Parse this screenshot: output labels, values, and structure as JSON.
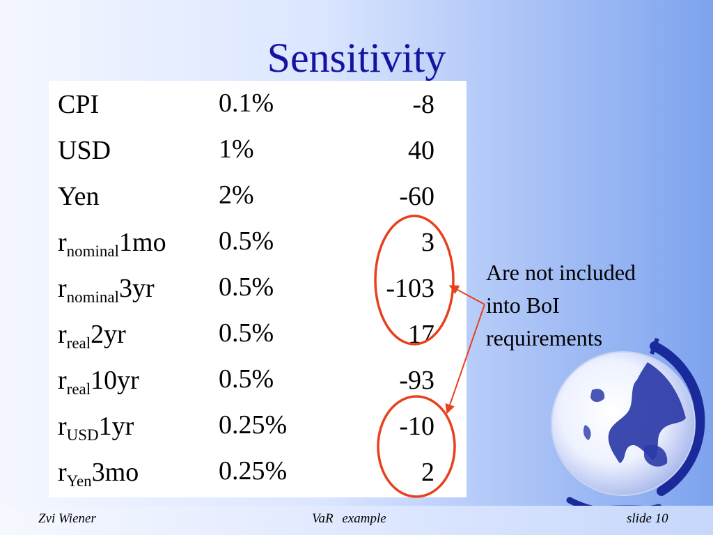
{
  "slide": {
    "title": "Sensitivity",
    "rows": [
      {
        "name": "CPI",
        "sub": "",
        "suffix": "",
        "change": "0.1%",
        "value": "-8"
      },
      {
        "name": "USD",
        "sub": "",
        "suffix": "",
        "change": "1%",
        "value": "40"
      },
      {
        "name": "Yen",
        "sub": "",
        "suffix": "",
        "change": "2%",
        "value": "-60"
      },
      {
        "name": "r",
        "sub": "nominal",
        "suffix": "1mo",
        "change": "0.5%",
        "value": "3"
      },
      {
        "name": "r",
        "sub": "nominal",
        "suffix": "3yr",
        "change": "0.5%",
        "value": "-103"
      },
      {
        "name": "r",
        "sub": "real",
        "suffix": "2yr",
        "change": "0.5%",
        "value": "17"
      },
      {
        "name": "r",
        "sub": "real",
        "suffix": "10yr",
        "change": "0.5%",
        "value": "-93"
      },
      {
        "name": "r",
        "sub": "USD",
        "suffix": "1yr",
        "change": "0.25%",
        "value": "-10"
      },
      {
        "name": "r",
        "sub": "Yen",
        "suffix": "3mo",
        "change": "0.25%",
        "value": "2"
      }
    ],
    "note": {
      "line1": "Are not included",
      "line2": "into BoI",
      "line3": "requirements"
    },
    "colors": {
      "title": "#1414a0",
      "highlight": "#e8401c",
      "globe": "#1a2a9a"
    }
  },
  "footer": {
    "author": "Zvi Wiener",
    "topic": "VaR example",
    "slide_number": "slide 10"
  }
}
